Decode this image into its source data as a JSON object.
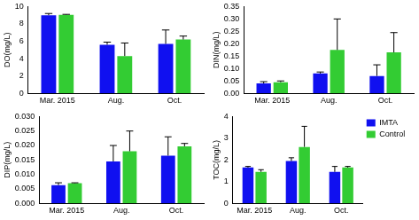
{
  "chart_data": [
    {
      "type": "bar",
      "y_label": "DO(mg/L)",
      "categories": [
        "Mar. 2015",
        "Aug.",
        "Oct."
      ],
      "series": [
        {
          "name": "IMTA",
          "color": "#1010f0",
          "values": [
            9.0,
            5.6,
            5.7
          ],
          "errors": [
            0.2,
            0.3,
            1.6
          ]
        },
        {
          "name": "Control",
          "color": "#33cc33",
          "values": [
            9.05,
            4.3,
            6.2
          ],
          "errors": [
            0.05,
            1.5,
            0.4
          ]
        }
      ],
      "ylim": [
        0,
        10
      ],
      "yticks": [
        0,
        2,
        4,
        6,
        8,
        10
      ],
      "grid": false
    },
    {
      "type": "bar",
      "y_label": "DIN(mg/L)",
      "categories": [
        "Mar. 2015",
        "Aug.",
        "Oct."
      ],
      "series": [
        {
          "name": "IMTA",
          "color": "#1010f0",
          "values": [
            0.04,
            0.08,
            0.07
          ],
          "errors": [
            0.007,
            0.006,
            0.045
          ]
        },
        {
          "name": "Control",
          "color": "#33cc33",
          "values": [
            0.045,
            0.175,
            0.165
          ],
          "errors": [
            0.005,
            0.125,
            0.08
          ]
        }
      ],
      "ylim": [
        0,
        0.35
      ],
      "yticks": [
        {
          "value": 0,
          "label": "0.00"
        },
        {
          "value": 0.05,
          "label": "0.05"
        },
        {
          "value": 0.1,
          "label": "0.10"
        },
        {
          "value": 0.15,
          "label": "0.15"
        },
        {
          "value": 0.2,
          "label": "0.20"
        },
        {
          "value": 0.25,
          "label": "0.25"
        },
        {
          "value": 0.3,
          "label": "0.30"
        },
        {
          "value": 0.35,
          "label": "0.35"
        }
      ],
      "grid": false
    },
    {
      "type": "bar",
      "y_label": "DIP(mg/L)",
      "categories": [
        "Mar. 2015",
        "Aug.",
        "Oct."
      ],
      "series": [
        {
          "name": "IMTA",
          "color": "#1010f0",
          "values": [
            0.0063,
            0.0145,
            0.0165
          ],
          "errors": [
            0.0008,
            0.0055,
            0.0065
          ]
        },
        {
          "name": "Control",
          "color": "#33cc33",
          "values": [
            0.007,
            0.018,
            0.0197
          ],
          "errors": [
            0.0001,
            0.007,
            0.001
          ]
        }
      ],
      "ylim": [
        0,
        0.03
      ],
      "yticks": [
        {
          "value": 0,
          "label": "0.000"
        },
        {
          "value": 0.005,
          "label": "0.005"
        },
        {
          "value": 0.01,
          "label": "0.010"
        },
        {
          "value": 0.015,
          "label": "0.015"
        },
        {
          "value": 0.02,
          "label": "0.020"
        },
        {
          "value": 0.025,
          "label": "0.025"
        },
        {
          "value": 0.03,
          "label": "0.030"
        }
      ],
      "grid": false
    },
    {
      "type": "bar",
      "y_label": "TOC(mg/L)",
      "categories": [
        "Mar. 2015",
        "Aug.",
        "Oct."
      ],
      "series": [
        {
          "name": "IMTA",
          "color": "#1010f0",
          "values": [
            1.65,
            1.95,
            1.45
          ],
          "errors": [
            0.05,
            0.15,
            0.25
          ]
        },
        {
          "name": "Control",
          "color": "#33cc33",
          "values": [
            1.45,
            2.6,
            1.65
          ],
          "errors": [
            0.1,
            0.95,
            0.05
          ]
        }
      ],
      "ylim": [
        0,
        4
      ],
      "yticks": [
        0,
        1,
        2,
        3,
        4
      ],
      "grid": false,
      "legend": "upper right"
    }
  ]
}
